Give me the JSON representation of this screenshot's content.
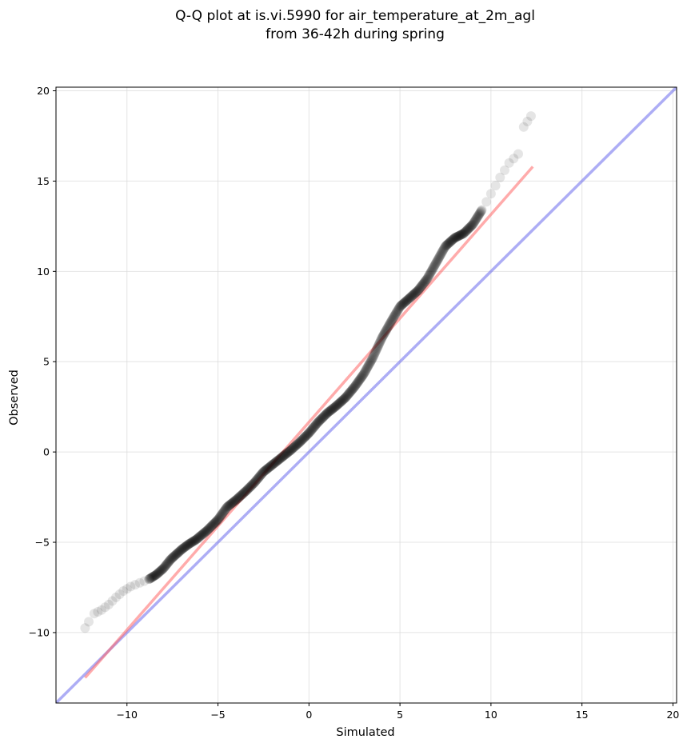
{
  "chart_data": {
    "type": "scatter",
    "title": [
      "Q-Q plot at is.vi.5990 for air_temperature_at_2m_agl",
      "from 36-42h during spring"
    ],
    "xlabel": "Simulated",
    "ylabel": "Observed",
    "xlim": [
      -13.9,
      20.2
    ],
    "ylim": [
      -13.9,
      20.2
    ],
    "grid": true,
    "x_ticks": [
      -10,
      -5,
      0,
      5,
      10,
      15,
      20
    ],
    "y_ticks": [
      -10,
      -5,
      0,
      5,
      10,
      15,
      20
    ],
    "x_tick_labels": [
      "−10",
      "−5",
      "0",
      "5",
      "10",
      "15",
      "20"
    ],
    "y_tick_labels": [
      "−10",
      "−5",
      "0",
      "5",
      "10",
      "15",
      "20"
    ],
    "point_color": "#000000",
    "quantile_curve": [
      [
        -12.3,
        -9.75
      ],
      [
        -12.1,
        -9.4
      ],
      [
        -11.8,
        -8.95
      ],
      [
        -11.4,
        -8.75
      ],
      [
        -11.0,
        -8.45
      ],
      [
        -10.6,
        -8.05
      ],
      [
        -10.2,
        -7.7
      ],
      [
        -9.8,
        -7.45
      ],
      [
        -9.3,
        -7.25
      ],
      [
        -8.8,
        -7.05
      ],
      [
        -8.4,
        -6.8
      ],
      [
        -8.0,
        -6.45
      ],
      [
        -7.6,
        -5.95
      ],
      [
        -7.0,
        -5.4
      ],
      [
        -6.6,
        -5.1
      ],
      [
        -6.2,
        -4.85
      ],
      [
        -5.6,
        -4.35
      ],
      [
        -5.0,
        -3.75
      ],
      [
        -4.5,
        -3.05
      ],
      [
        -4.0,
        -2.65
      ],
      [
        -3.5,
        -2.2
      ],
      [
        -3.0,
        -1.7
      ],
      [
        -2.5,
        -1.1
      ],
      [
        -2.0,
        -0.7
      ],
      [
        -1.5,
        -0.3
      ],
      [
        -1.0,
        0.1
      ],
      [
        -0.5,
        0.55
      ],
      [
        0.0,
        1.05
      ],
      [
        0.5,
        1.65
      ],
      [
        1.0,
        2.15
      ],
      [
        1.5,
        2.55
      ],
      [
        2.0,
        3.0
      ],
      [
        2.5,
        3.6
      ],
      [
        3.0,
        4.3
      ],
      [
        3.5,
        5.2
      ],
      [
        4.0,
        6.3
      ],
      [
        4.5,
        7.2
      ],
      [
        5.0,
        8.05
      ],
      [
        5.5,
        8.5
      ],
      [
        6.0,
        8.95
      ],
      [
        6.5,
        9.6
      ],
      [
        7.0,
        10.5
      ],
      [
        7.5,
        11.4
      ],
      [
        8.0,
        11.85
      ],
      [
        8.5,
        12.1
      ],
      [
        9.0,
        12.6
      ],
      [
        9.5,
        13.4
      ],
      [
        10.0,
        14.3
      ],
      [
        10.5,
        15.2
      ],
      [
        11.0,
        16.0
      ],
      [
        11.5,
        16.5
      ],
      [
        11.8,
        18.0
      ],
      [
        12.2,
        18.6
      ]
    ],
    "reference_lines": [
      {
        "color": "#7777ee",
        "opacity": 0.6,
        "points": [
          [
            -13.9,
            -13.9
          ],
          [
            20.2,
            20.2
          ]
        ]
      },
      {
        "color": "#ff6666",
        "opacity": 0.55,
        "points": [
          [
            -12.3,
            -12.5
          ],
          [
            12.3,
            15.8
          ]
        ]
      }
    ]
  }
}
